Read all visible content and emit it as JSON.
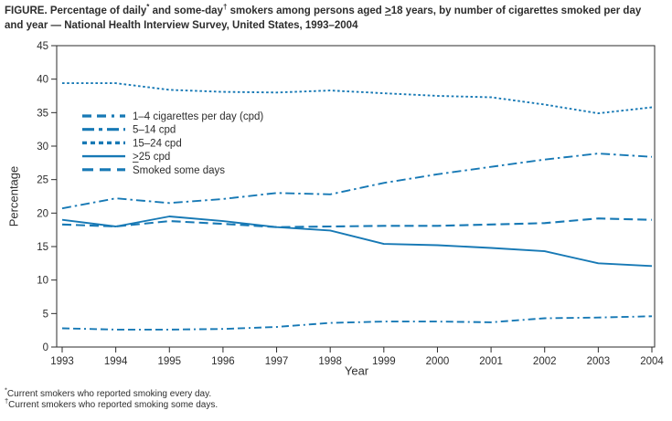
{
  "figure_title": {
    "lines": [
      [
        {
          "t": "FIGURE. Percentage of daily"
        },
        {
          "t": "*",
          "s": "sup"
        },
        {
          "t": " and some-day"
        },
        {
          "t": "†",
          "s": "sup"
        },
        {
          "t": " smokers among persons aged "
        },
        {
          "t": ">",
          "s": "geq"
        },
        {
          "t": "18 years, by number of cigarettes smoked per day"
        }
      ],
      [
        {
          "t": "and year — National Health Interview Survey, United States, 1993–2004"
        }
      ]
    ]
  },
  "chart_data": {
    "type": "line",
    "title": "",
    "xlabel": "Year",
    "ylabel": "Percentage",
    "ylim": [
      0,
      45
    ],
    "yticks": [
      0,
      5,
      10,
      15,
      20,
      25,
      30,
      35,
      40,
      45
    ],
    "x": [
      1993,
      1994,
      1995,
      1996,
      1997,
      1998,
      1999,
      2000,
      2001,
      2002,
      2003,
      2004
    ],
    "grid": "off",
    "legend_position": "upper-left-inside",
    "line_color": "#1779b5",
    "axis_color": "#2b2b2b",
    "series": [
      {
        "name": "1–4 cigarettes per day (cpd)",
        "line_style": "dash-dash-dot",
        "values": [
          2.8,
          2.6,
          2.6,
          2.7,
          3.0,
          3.6,
          3.8,
          3.8,
          3.7,
          4.3,
          4.4,
          4.6
        ]
      },
      {
        "name": "5–14 cpd",
        "line_style": "dash-dot",
        "values": [
          20.7,
          22.2,
          21.5,
          22.1,
          23.0,
          22.8,
          24.5,
          25.8,
          26.9,
          28.0,
          28.9,
          28.4
        ]
      },
      {
        "name": "15–24 cpd",
        "line_style": "dotted",
        "values": [
          39.4,
          39.4,
          38.4,
          38.1,
          38.0,
          38.3,
          37.9,
          37.5,
          37.3,
          36.2,
          34.9,
          35.8
        ]
      },
      {
        "name": "≥25 cpd",
        "line_style": "solid",
        "values": [
          19.0,
          18.0,
          19.5,
          18.8,
          17.9,
          17.4,
          15.4,
          15.2,
          14.8,
          14.3,
          12.5,
          12.1
        ]
      },
      {
        "name": "Smoked some days",
        "line_style": "long-dash",
        "values": [
          18.3,
          18.0,
          18.8,
          18.4,
          17.9,
          18.0,
          18.1,
          18.1,
          18.3,
          18.5,
          19.2,
          19.0
        ]
      }
    ]
  },
  "footnotes": [
    {
      "marker": "*",
      "text": "Current smokers who reported smoking every day."
    },
    {
      "marker": "†",
      "text": "Current smokers who reported smoking some days."
    }
  ]
}
